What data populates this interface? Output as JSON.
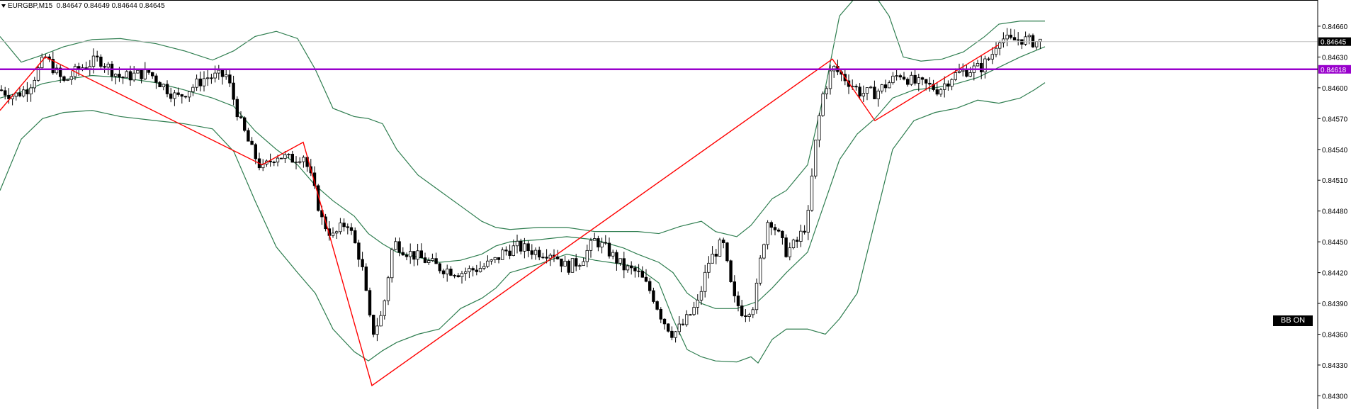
{
  "header": {
    "symbol_timeframe": "EURGBP,M15",
    "ohlc": "0.84647 0.84649 0.84644 0.84645"
  },
  "bb_button": "BB ON",
  "colors": {
    "candle": "#000000",
    "bands": "#2e7d4f",
    "zigzag": "#ff0000",
    "hline": "#9900cc",
    "bid_line": "#c0c0c0",
    "bg": "#ffffff"
  },
  "price_tags": {
    "current": "0.84645",
    "hline": "0.84618"
  },
  "chart_data": {
    "type": "candlestick",
    "y_ticks": [
      "0.84660",
      "0.84630",
      "0.84600",
      "0.84570",
      "0.84540",
      "0.84510",
      "0.84480",
      "0.84450",
      "0.84420",
      "0.84390",
      "0.84360",
      "0.84330",
      "0.84300"
    ],
    "ylim": [
      0.84292,
      0.8468
    ],
    "horizontal_line": 0.84618,
    "bid_line": 0.84645,
    "zigzag": [
      [
        0,
        0.84578
      ],
      [
        64,
        0.8463
      ],
      [
        370,
        0.84525
      ],
      [
        428,
        0.84547
      ],
      [
        525,
        0.8431
      ],
      [
        1175,
        0.84628
      ],
      [
        1235,
        0.84568
      ],
      [
        1410,
        0.84642
      ]
    ],
    "bb_upper": [
      [
        0,
        0.8465
      ],
      [
        30,
        0.84625
      ],
      [
        60,
        0.84632
      ],
      [
        90,
        0.8464
      ],
      [
        130,
        0.84647
      ],
      [
        170,
        0.84648
      ],
      [
        220,
        0.84643
      ],
      [
        260,
        0.84636
      ],
      [
        300,
        0.84627
      ],
      [
        330,
        0.84636
      ],
      [
        360,
        0.8465
      ],
      [
        390,
        0.84655
      ],
      [
        420,
        0.84648
      ],
      [
        445,
        0.84618
      ],
      [
        470,
        0.8458
      ],
      [
        500,
        0.84572
      ],
      [
        520,
        0.8457
      ],
      [
        540,
        0.84565
      ],
      [
        560,
        0.8454
      ],
      [
        590,
        0.84515
      ],
      [
        620,
        0.845
      ],
      [
        650,
        0.84485
      ],
      [
        680,
        0.8447
      ],
      [
        700,
        0.84464
      ],
      [
        720,
        0.84462
      ],
      [
        760,
        0.84464
      ],
      [
        800,
        0.84464
      ],
      [
        840,
        0.8446
      ],
      [
        900,
        0.8446
      ],
      [
        930,
        0.84458
      ],
      [
        960,
        0.84465
      ],
      [
        990,
        0.8447
      ],
      [
        1010,
        0.8446
      ],
      [
        1040,
        0.84455
      ],
      [
        1060,
        0.84466
      ],
      [
        1090,
        0.84492
      ],
      [
        1110,
        0.845
      ],
      [
        1140,
        0.84525
      ],
      [
        1165,
        0.846
      ],
      [
        1185,
        0.8467
      ],
      [
        1210,
        0.8469
      ],
      [
        1235,
        0.8469
      ],
      [
        1255,
        0.8467
      ],
      [
        1275,
        0.8463
      ],
      [
        1300,
        0.84626
      ],
      [
        1330,
        0.84628
      ],
      [
        1360,
        0.84635
      ],
      [
        1390,
        0.8465
      ],
      [
        1410,
        0.84662
      ],
      [
        1440,
        0.84665
      ],
      [
        1475,
        0.84665
      ]
    ],
    "bb_middle": [
      [
        0,
        0.8459
      ],
      [
        30,
        0.84596
      ],
      [
        60,
        0.84604
      ],
      [
        90,
        0.84608
      ],
      [
        130,
        0.84612
      ],
      [
        170,
        0.8461
      ],
      [
        220,
        0.84605
      ],
      [
        260,
        0.84598
      ],
      [
        300,
        0.8459
      ],
      [
        330,
        0.84582
      ],
      [
        360,
        0.84558
      ],
      [
        390,
        0.8454
      ],
      [
        420,
        0.84525
      ],
      [
        445,
        0.84505
      ],
      [
        470,
        0.8449
      ],
      [
        500,
        0.84475
      ],
      [
        520,
        0.84458
      ],
      [
        540,
        0.84448
      ],
      [
        560,
        0.8444
      ],
      [
        590,
        0.84435
      ],
      [
        620,
        0.8443
      ],
      [
        650,
        0.84432
      ],
      [
        680,
        0.84438
      ],
      [
        700,
        0.84446
      ],
      [
        720,
        0.8445
      ],
      [
        760,
        0.84452
      ],
      [
        800,
        0.84455
      ],
      [
        840,
        0.84452
      ],
      [
        880,
        0.84444
      ],
      [
        900,
        0.84438
      ],
      [
        930,
        0.8443
      ],
      [
        950,
        0.8442
      ],
      [
        970,
        0.844
      ],
      [
        990,
        0.8439
      ],
      [
        1010,
        0.84385
      ],
      [
        1040,
        0.84385
      ],
      [
        1070,
        0.84392
      ],
      [
        1090,
        0.84405
      ],
      [
        1110,
        0.8442
      ],
      [
        1140,
        0.8444
      ],
      [
        1165,
        0.8449
      ],
      [
        1185,
        0.8453
      ],
      [
        1210,
        0.84555
      ],
      [
        1235,
        0.8457
      ],
      [
        1260,
        0.8459
      ],
      [
        1290,
        0.84598
      ],
      [
        1320,
        0.846
      ],
      [
        1350,
        0.84604
      ],
      [
        1380,
        0.8461
      ],
      [
        1410,
        0.8462
      ],
      [
        1440,
        0.8463
      ],
      [
        1475,
        0.8464
      ]
    ],
    "bb_lower": [
      [
        0,
        0.845
      ],
      [
        30,
        0.8455
      ],
      [
        60,
        0.8457
      ],
      [
        90,
        0.84576
      ],
      [
        130,
        0.84578
      ],
      [
        170,
        0.84572
      ],
      [
        220,
        0.84568
      ],
      [
        260,
        0.84565
      ],
      [
        300,
        0.8456
      ],
      [
        330,
        0.84538
      ],
      [
        360,
        0.8449
      ],
      [
        390,
        0.84445
      ],
      [
        420,
        0.8442
      ],
      [
        445,
        0.844
      ],
      [
        470,
        0.84365
      ],
      [
        500,
        0.84343
      ],
      [
        520,
        0.84334
      ],
      [
        540,
        0.84344
      ],
      [
        560,
        0.84352
      ],
      [
        590,
        0.8436
      ],
      [
        620,
        0.84365
      ],
      [
        650,
        0.84385
      ],
      [
        680,
        0.84395
      ],
      [
        700,
        0.84405
      ],
      [
        720,
        0.8442
      ],
      [
        760,
        0.84428
      ],
      [
        800,
        0.84438
      ],
      [
        840,
        0.84432
      ],
      [
        880,
        0.84428
      ],
      [
        900,
        0.84425
      ],
      [
        930,
        0.8441
      ],
      [
        950,
        0.84375
      ],
      [
        970,
        0.84345
      ],
      [
        990,
        0.84338
      ],
      [
        1010,
        0.84334
      ],
      [
        1040,
        0.84333
      ],
      [
        1060,
        0.84338
      ],
      [
        1070,
        0.84332
      ],
      [
        1090,
        0.84355
      ],
      [
        1110,
        0.84365
      ],
      [
        1140,
        0.84365
      ],
      [
        1165,
        0.8436
      ],
      [
        1185,
        0.84375
      ],
      [
        1210,
        0.844
      ],
      [
        1235,
        0.8447
      ],
      [
        1260,
        0.8454
      ],
      [
        1290,
        0.84568
      ],
      [
        1320,
        0.84576
      ],
      [
        1350,
        0.8458
      ],
      [
        1380,
        0.84588
      ],
      [
        1410,
        0.84585
      ],
      [
        1440,
        0.8459
      ],
      [
        1460,
        0.84598
      ],
      [
        1475,
        0.84605
      ]
    ],
    "candles_anchor": [
      [
        0,
        0.84598
      ],
      [
        20,
        0.84592
      ],
      [
        40,
        0.846
      ],
      [
        64,
        0.8463
      ],
      [
        90,
        0.84605
      ],
      [
        110,
        0.84618
      ],
      [
        140,
        0.84628
      ],
      [
        170,
        0.8461
      ],
      [
        210,
        0.84615
      ],
      [
        250,
        0.8459
      ],
      [
        270,
        0.846
      ],
      [
        290,
        0.8461
      ],
      [
        320,
        0.84612
      ],
      [
        340,
        0.84565
      ],
      [
        355,
        0.8454
      ],
      [
        370,
        0.8452
      ],
      [
        390,
        0.84535
      ],
      [
        410,
        0.8453
      ],
      [
        428,
        0.84535
      ],
      [
        440,
        0.8451
      ],
      [
        455,
        0.8447
      ],
      [
        470,
        0.84455
      ],
      [
        490,
        0.8447
      ],
      [
        510,
        0.8443
      ],
      [
        525,
        0.8436
      ],
      [
        540,
        0.8438
      ],
      [
        555,
        0.8445
      ],
      [
        575,
        0.8444
      ],
      [
        600,
        0.84432
      ],
      [
        620,
        0.84425
      ],
      [
        650,
        0.8442
      ],
      [
        680,
        0.84425
      ],
      [
        700,
        0.84432
      ],
      [
        710,
        0.8444
      ],
      [
        730,
        0.84445
      ],
      [
        760,
        0.8444
      ],
      [
        780,
        0.8444
      ],
      [
        800,
        0.84425
      ],
      [
        820,
        0.84432
      ],
      [
        840,
        0.84452
      ],
      [
        860,
        0.8444
      ],
      [
        880,
        0.84425
      ],
      [
        900,
        0.8442
      ],
      [
        920,
        0.844
      ],
      [
        935,
        0.84375
      ],
      [
        950,
        0.8436
      ],
      [
        965,
        0.8437
      ],
      [
        985,
        0.8439
      ],
      [
        1000,
        0.8443
      ],
      [
        1020,
        0.8445
      ],
      [
        1035,
        0.84395
      ],
      [
        1050,
        0.8438
      ],
      [
        1065,
        0.8439
      ],
      [
        1075,
        0.8444
      ],
      [
        1085,
        0.84475
      ],
      [
        1095,
        0.84462
      ],
      [
        1110,
        0.8444
      ],
      [
        1125,
        0.8445
      ],
      [
        1140,
        0.8447
      ],
      [
        1150,
        0.8454
      ],
      [
        1160,
        0.8459
      ],
      [
        1175,
        0.8462
      ],
      [
        1195,
        0.84608
      ],
      [
        1215,
        0.84595
      ],
      [
        1235,
        0.84595
      ],
      [
        1255,
        0.84605
      ],
      [
        1270,
        0.84614
      ],
      [
        1290,
        0.84605
      ],
      [
        1310,
        0.84602
      ],
      [
        1325,
        0.84598
      ],
      [
        1345,
        0.84612
      ],
      [
        1365,
        0.84617
      ],
      [
        1385,
        0.8462
      ],
      [
        1400,
        0.84632
      ],
      [
        1410,
        0.8465
      ],
      [
        1425,
        0.84645
      ],
      [
        1440,
        0.84648
      ],
      [
        1455,
        0.84645
      ],
      [
        1465,
        0.84645
      ],
      [
        1473,
        0.84645
      ]
    ]
  }
}
